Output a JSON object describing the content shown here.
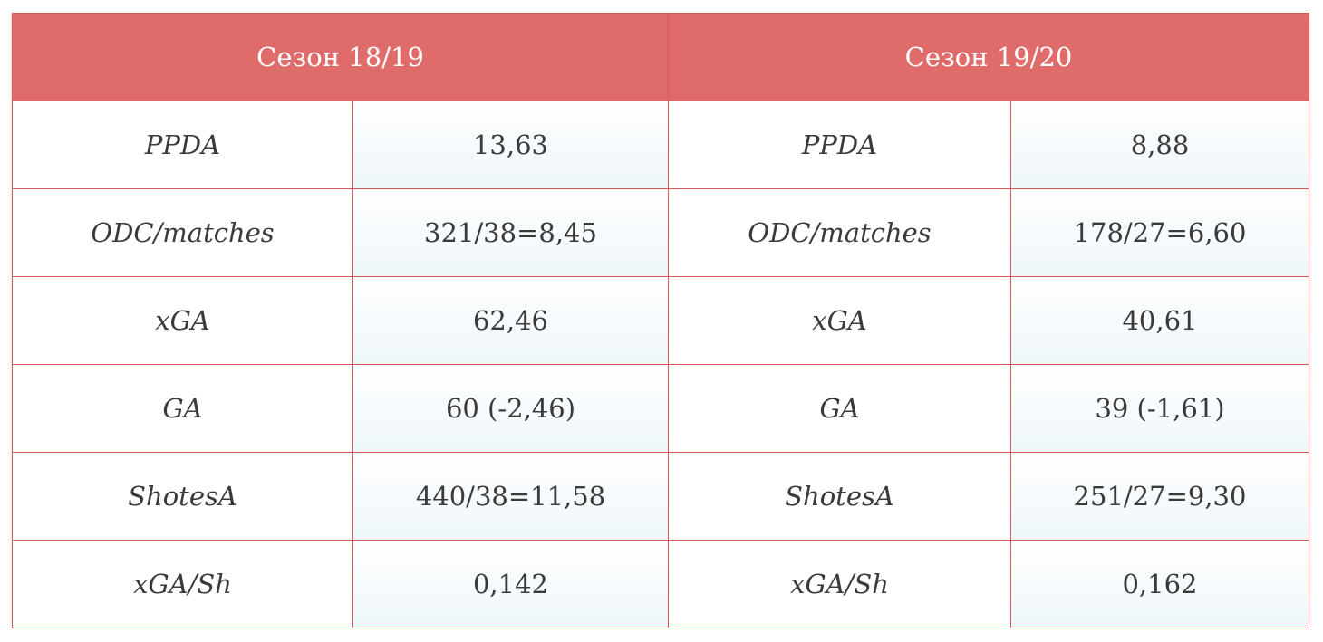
{
  "headers": [
    "Сезон 18/19",
    "Сезон 19/20"
  ],
  "rows": [
    {
      "metric_1": "PPDA",
      "value_1": "13,63",
      "metric_2": "PPDA",
      "value_2": "8,88"
    },
    {
      "metric_1": "ODC/matches",
      "value_1": "321/38=8,45",
      "metric_2": "ODC/matches",
      "value_2": "178/27=6,60"
    },
    {
      "metric_1": "xGA",
      "value_1": "62,46",
      "metric_2": "xGA",
      "value_2": "40,61"
    },
    {
      "metric_1": "GA",
      "value_1": "60 (-2,46)",
      "metric_2": "GA",
      "value_2": "39 (-1,61)"
    },
    {
      "metric_1": "ShotesA",
      "value_1": "440/38=11,58",
      "metric_2": "ShotesA",
      "value_2": "251/27=9,30"
    },
    {
      "metric_1": "xGA/Sh",
      "value_1": "0,142",
      "metric_2": "xGA/Sh",
      "value_2": "0,162"
    }
  ],
  "colors": {
    "header_bg": "#e06b6b",
    "border": "#d9585c",
    "value_cell_tint": "#eef6fa"
  }
}
